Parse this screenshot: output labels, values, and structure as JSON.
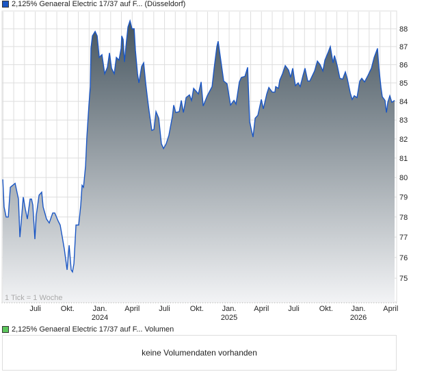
{
  "header": {
    "title": "2,125% Genaeral Electric 17/37 auf F... (Düsseldorf)",
    "series_color": "#1a56c4"
  },
  "volume": {
    "title": "2,125% Genaeral Electric 17/37 auf F... Volumen",
    "series_color": "#5cc65c",
    "empty_message": "keine Volumendaten vorhanden"
  },
  "chart_data": {
    "type": "area",
    "title": "2,125% Genaeral Electric 17/37 auf F... (Düsseldorf)",
    "xlabel": "",
    "ylabel": "",
    "note": "1 Tick = 1 Woche",
    "y_scale": "log",
    "xlim": [
      2023.243,
      2026.296
    ],
    "ylim": [
      73.86,
      88.97
    ],
    "grid": true,
    "y_ticks": [
      75,
      76,
      77,
      78,
      79,
      80,
      81,
      82,
      83,
      84,
      85,
      86,
      87,
      88
    ],
    "x_ticks": [
      {
        "t": 2023.5,
        "label": "Juli",
        "sub": ""
      },
      {
        "t": 2023.75,
        "label": "Okt.",
        "sub": ""
      },
      {
        "t": 2024.0,
        "label": "Jan.",
        "sub": "2024"
      },
      {
        "t": 2024.25,
        "label": "April",
        "sub": ""
      },
      {
        "t": 2024.5,
        "label": "Juli",
        "sub": ""
      },
      {
        "t": 2024.75,
        "label": "Okt.",
        "sub": ""
      },
      {
        "t": 2025.0,
        "label": "Jan.",
        "sub": "2025"
      },
      {
        "t": 2025.25,
        "label": "April",
        "sub": ""
      },
      {
        "t": 2025.5,
        "label": "Juli",
        "sub": ""
      },
      {
        "t": 2025.75,
        "label": "Okt.",
        "sub": ""
      },
      {
        "t": 2026.0,
        "label": "Jan.",
        "sub": "2026"
      },
      {
        "t": 2026.25,
        "label": "April",
        "sub": ""
      }
    ],
    "colors": {
      "line": "#1a56c4",
      "fill_top": "#46555f",
      "fill_bottom": "#f2f3f5",
      "grid": "#dddddd"
    },
    "series": [
      {
        "name": "2,125% Genaeral Electric 17/37",
        "points": [
          [
            2023.249,
            79.9
          ],
          [
            2023.259,
            78.5
          ],
          [
            2023.275,
            78.0
          ],
          [
            2023.291,
            78.0
          ],
          [
            2023.307,
            79.5
          ],
          [
            2023.344,
            79.7
          ],
          [
            2023.37,
            78.9
          ],
          [
            2023.381,
            77.0
          ],
          [
            2023.397,
            78.2
          ],
          [
            2023.407,
            79.0
          ],
          [
            2023.423,
            78.4
          ],
          [
            2023.439,
            77.9
          ],
          [
            2023.46,
            78.9
          ],
          [
            2023.471,
            78.9
          ],
          [
            2023.481,
            78.6
          ],
          [
            2023.497,
            76.9
          ],
          [
            2023.508,
            78.1
          ],
          [
            2023.529,
            79.1
          ],
          [
            2023.55,
            79.25
          ],
          [
            2023.561,
            78.5
          ],
          [
            2023.587,
            77.9
          ],
          [
            2023.608,
            77.7
          ],
          [
            2023.635,
            78.2
          ],
          [
            2023.651,
            78.2
          ],
          [
            2023.677,
            77.8
          ],
          [
            2023.693,
            77.6
          ],
          [
            2023.709,
            77.0
          ],
          [
            2023.725,
            76.4
          ],
          [
            2023.746,
            75.4
          ],
          [
            2023.762,
            76.6
          ],
          [
            2023.778,
            75.4
          ],
          [
            2023.788,
            75.3
          ],
          [
            2023.799,
            75.7
          ],
          [
            2023.815,
            77.6
          ],
          [
            2023.836,
            77.6
          ],
          [
            2023.852,
            78.6
          ],
          [
            2023.862,
            79.6
          ],
          [
            2023.873,
            79.5
          ],
          [
            2023.889,
            80.6
          ],
          [
            2023.899,
            82.1
          ],
          [
            2023.915,
            83.8
          ],
          [
            2023.926,
            84.8
          ],
          [
            2023.931,
            86.9
          ],
          [
            2023.942,
            87.6
          ],
          [
            2023.963,
            87.85
          ],
          [
            2023.979,
            87.6
          ],
          [
            2023.995,
            86.4
          ],
          [
            2024.016,
            86.55
          ],
          [
            2024.037,
            85.5
          ],
          [
            2024.058,
            85.85
          ],
          [
            2024.074,
            86.65
          ],
          [
            2024.09,
            85.8
          ],
          [
            2024.111,
            85.5
          ],
          [
            2024.127,
            86.4
          ],
          [
            2024.148,
            86.25
          ],
          [
            2024.164,
            86.9
          ],
          [
            2024.169,
            87.6
          ],
          [
            2024.18,
            87.4
          ],
          [
            2024.19,
            86.15
          ],
          [
            2024.201,
            87.0
          ],
          [
            2024.217,
            88.1
          ],
          [
            2024.233,
            88.45
          ],
          [
            2024.249,
            88.0
          ],
          [
            2024.265,
            88.0
          ],
          [
            2024.275,
            86.8
          ],
          [
            2024.291,
            85.5
          ],
          [
            2024.302,
            85.0
          ],
          [
            2024.323,
            85.9
          ],
          [
            2024.339,
            86.1
          ],
          [
            2024.354,
            85.0
          ],
          [
            2024.37,
            84.05
          ],
          [
            2024.381,
            83.45
          ],
          [
            2024.402,
            82.45
          ],
          [
            2024.418,
            82.5
          ],
          [
            2024.434,
            83.45
          ],
          [
            2024.455,
            83.1
          ],
          [
            2024.476,
            81.75
          ],
          [
            2024.492,
            81.5
          ],
          [
            2024.513,
            81.75
          ],
          [
            2024.534,
            82.2
          ],
          [
            2024.561,
            83.2
          ],
          [
            2024.571,
            83.8
          ],
          [
            2024.587,
            83.4
          ],
          [
            2024.614,
            83.45
          ],
          [
            2024.63,
            84.05
          ],
          [
            2024.646,
            83.4
          ],
          [
            2024.667,
            84.2
          ],
          [
            2024.693,
            84.35
          ],
          [
            2024.709,
            84.05
          ],
          [
            2024.725,
            84.7
          ],
          [
            2024.762,
            84.4
          ],
          [
            2024.783,
            85.05
          ],
          [
            2024.799,
            83.75
          ],
          [
            2024.831,
            84.3
          ],
          [
            2024.868,
            84.8
          ],
          [
            2024.884,
            85.8
          ],
          [
            2024.905,
            87.0
          ],
          [
            2024.915,
            87.3
          ],
          [
            2024.937,
            86.15
          ],
          [
            2024.958,
            85.1
          ],
          [
            2024.984,
            84.95
          ],
          [
            2025.011,
            83.8
          ],
          [
            2025.037,
            84.05
          ],
          [
            2025.053,
            83.85
          ],
          [
            2025.079,
            85.05
          ],
          [
            2025.095,
            85.3
          ],
          [
            2025.122,
            85.35
          ],
          [
            2025.143,
            85.85
          ],
          [
            2025.159,
            82.9
          ],
          [
            2025.185,
            82.1
          ],
          [
            2025.201,
            83.1
          ],
          [
            2025.222,
            83.25
          ],
          [
            2025.249,
            84.1
          ],
          [
            2025.265,
            83.6
          ],
          [
            2025.291,
            84.4
          ],
          [
            2025.307,
            84.75
          ],
          [
            2025.333,
            84.5
          ],
          [
            2025.354,
            84.5
          ],
          [
            2025.36,
            84.8
          ],
          [
            2025.381,
            84.7
          ],
          [
            2025.392,
            85.15
          ],
          [
            2025.413,
            85.5
          ],
          [
            2025.434,
            85.95
          ],
          [
            2025.46,
            85.7
          ],
          [
            2025.476,
            85.3
          ],
          [
            2025.492,
            85.8
          ],
          [
            2025.513,
            84.85
          ],
          [
            2025.534,
            85.0
          ],
          [
            2025.55,
            84.8
          ],
          [
            2025.571,
            85.4
          ],
          [
            2025.587,
            85.8
          ],
          [
            2025.608,
            85.1
          ],
          [
            2025.624,
            85.1
          ],
          [
            2025.661,
            85.65
          ],
          [
            2025.683,
            86.2
          ],
          [
            2025.704,
            86.0
          ],
          [
            2025.725,
            85.65
          ],
          [
            2025.741,
            86.25
          ],
          [
            2025.767,
            86.7
          ],
          [
            2025.783,
            87.0
          ],
          [
            2025.804,
            86.1
          ],
          [
            2025.815,
            86.5
          ],
          [
            2025.836,
            85.95
          ],
          [
            2025.857,
            85.25
          ],
          [
            2025.878,
            85.2
          ],
          [
            2025.899,
            85.6
          ],
          [
            2025.915,
            85.2
          ],
          [
            2025.937,
            84.45
          ],
          [
            2025.952,
            84.1
          ],
          [
            2025.968,
            84.3
          ],
          [
            2025.989,
            84.2
          ],
          [
            2026.011,
            85.1
          ],
          [
            2026.026,
            85.25
          ],
          [
            2026.048,
            85.05
          ],
          [
            2026.074,
            85.4
          ],
          [
            2026.101,
            85.8
          ],
          [
            2026.122,
            86.4
          ],
          [
            2026.148,
            86.9
          ],
          [
            2026.159,
            85.8
          ],
          [
            2026.175,
            84.75
          ],
          [
            2026.185,
            84.25
          ],
          [
            2026.206,
            84.05
          ],
          [
            2026.217,
            83.4
          ],
          [
            2026.228,
            83.95
          ],
          [
            2026.243,
            84.3
          ],
          [
            2026.259,
            83.95
          ],
          [
            2026.28,
            84.05
          ]
        ]
      }
    ]
  }
}
